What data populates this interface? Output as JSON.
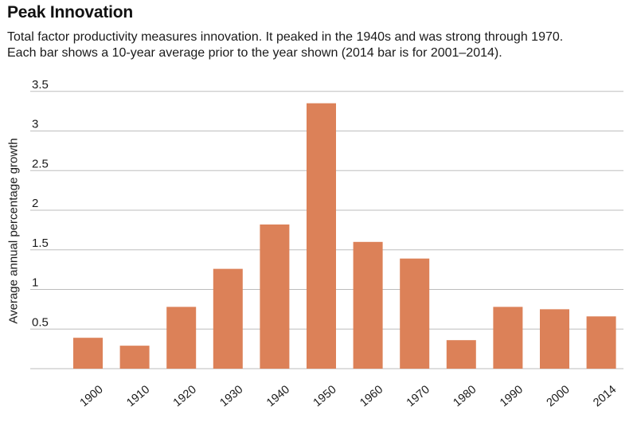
{
  "title": "Peak Innovation",
  "subtitle": [
    "Total factor productivity measures innovation. It peaked in the 1940s and was strong through 1970.",
    "Each bar shows a 10-year average prior to the year shown (2014 bar is for 2001–2014)."
  ],
  "colors": {
    "bar": "#dc8158",
    "grid": "#bdbdbd",
    "text": "#1a1a1a"
  },
  "chart_data": {
    "type": "bar",
    "title": "Peak Innovation",
    "xlabel": "",
    "ylabel": "Average annual percentage growth",
    "categories": [
      "1900",
      "1910",
      "1920",
      "1930",
      "1940",
      "1950",
      "1960",
      "1970",
      "1980",
      "1990",
      "2000",
      "2014"
    ],
    "values": [
      0.39,
      0.29,
      0.78,
      1.26,
      1.82,
      3.35,
      1.6,
      1.39,
      0.36,
      0.78,
      0.75,
      0.66
    ],
    "yticks": [
      0.5,
      1,
      1.5,
      2,
      2.5,
      3,
      3.5
    ],
    "ytick_labels": [
      "0.5",
      "1",
      "1.5",
      "2",
      "2.5",
      "3",
      "3.5"
    ],
    "ylim": [
      0,
      3.5
    ],
    "grid": true,
    "legend": "none"
  }
}
